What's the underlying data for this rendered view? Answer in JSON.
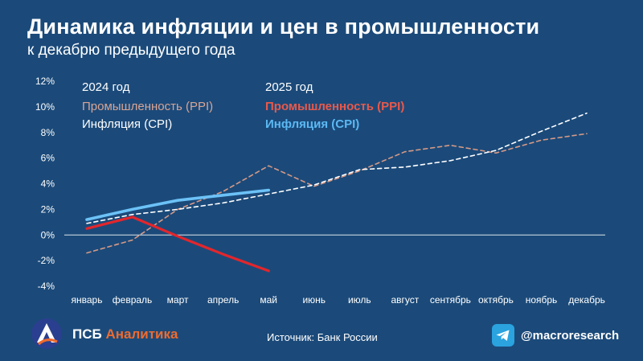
{
  "header": {
    "title": "Динамика инфляции и цен в промышленности",
    "subtitle": "к декабрю предыдущего года"
  },
  "legend": {
    "year_2024": "2024 год",
    "year_2025": "2025 год",
    "ppi_2024": "Промышленность (PPI)",
    "cpi_2024": "Инфляция (CPI)",
    "ppi_2025": "Промышленность (PPI)",
    "cpi_2025": "Инфляция (CPI)"
  },
  "footer": {
    "brand_part1": "ПСБ",
    "brand_part2": "Аналитика",
    "source": "Источник: Банк России",
    "telegram_handle": "@macroresearch",
    "icons": [
      "psb-logo-icon",
      "telegram-icon"
    ]
  },
  "colors": {
    "background": "#1b4a7a",
    "ppi_2025": "#e3262c",
    "cpi_2025": "#6cc2f7",
    "ppi_2024": "#d79a86",
    "cpi_2024": "#ffffff",
    "legend_ppi_2024_text": "#d9a595",
    "legend_ppi_2025_text": "#e8594c",
    "legend_cpi_2025_text": "#5bb8f3",
    "brand_accent": "#ef6b2e",
    "telegram": "#2aa3df"
  },
  "chart_data": {
    "type": "line",
    "categories": [
      "январь",
      "февраль",
      "март",
      "апрель",
      "май",
      "июнь",
      "июль",
      "август",
      "сентябрь",
      "октябрь",
      "ноябрь",
      "декабрь"
    ],
    "y_tick_labels": [
      "12%",
      "10%",
      "8%",
      "6%",
      "4%",
      "2%",
      "0%",
      "-2%",
      "-4%"
    ],
    "ylim": [
      -4,
      12
    ],
    "y_step": 2,
    "grid": false,
    "zero_line": true,
    "legend_position": "top-left",
    "series": [
      {
        "name": "Промышленность (PPI)",
        "year": "2024",
        "style": "dashed",
        "values": [
          -1.4,
          -0.4,
          2.0,
          3.4,
          5.4,
          3.8,
          5.0,
          6.5,
          7.0,
          6.4,
          7.4,
          7.9
        ]
      },
      {
        "name": "Инфляция (CPI)",
        "year": "2024",
        "style": "dashed",
        "values": [
          0.9,
          1.6,
          2.0,
          2.5,
          3.2,
          3.9,
          5.1,
          5.3,
          5.8,
          6.6,
          8.1,
          9.5
        ]
      },
      {
        "name": "Промышленность (PPI)",
        "year": "2025",
        "style": "solid",
        "values": [
          0.5,
          1.4,
          -0.1,
          -1.5,
          -2.8,
          null,
          null,
          null,
          null,
          null,
          null,
          null
        ]
      },
      {
        "name": "Инфляция (CPI)",
        "year": "2025",
        "style": "solid",
        "values": [
          1.2,
          2.0,
          2.7,
          3.1,
          3.5,
          null,
          null,
          null,
          null,
          null,
          null,
          null
        ]
      }
    ]
  }
}
